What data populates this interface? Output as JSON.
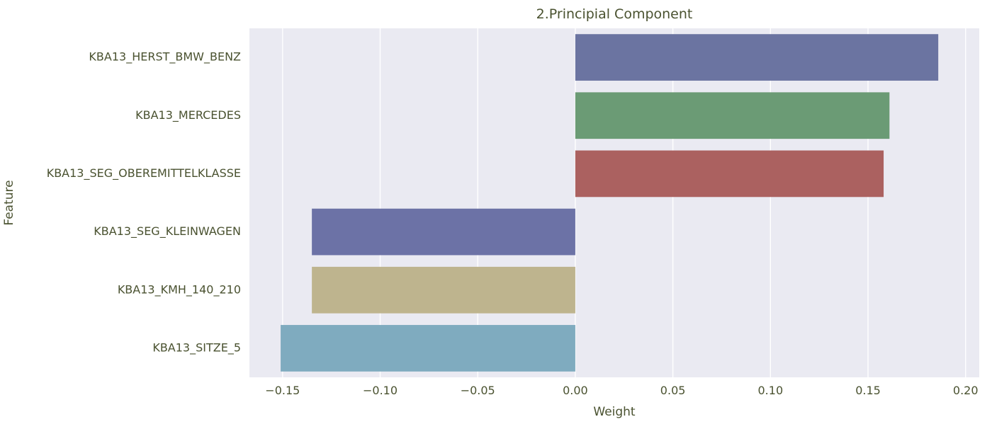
{
  "chart_data": {
    "type": "bar",
    "orientation": "horizontal",
    "title": "2.Principial Component",
    "xlabel": "Weight",
    "ylabel": "Feature",
    "categories": [
      "KBA13_HERST_BMW_BENZ",
      "KBA13_MERCEDES",
      "KBA13_SEG_OBEREMITTELKLASSE",
      "KBA13_SEG_KLEINWAGEN",
      "KBA13_KMH_140_210",
      "KBA13_SITZE_5"
    ],
    "values": [
      0.186,
      0.161,
      0.158,
      -0.135,
      -0.135,
      -0.151
    ],
    "colors": [
      "#6b74a1",
      "#6b9b75",
      "#ab6160",
      "#6c72a6",
      "#beb48e",
      "#7fabbf"
    ],
    "xlim": [
      -0.167,
      0.207
    ],
    "xticks": [
      -0.15,
      -0.1,
      -0.05,
      0.0,
      0.05,
      0.1,
      0.15,
      0.2
    ],
    "xtick_labels": [
      "−0.15",
      "−0.10",
      "−0.05",
      "0.00",
      "0.05",
      "0.10",
      "0.15",
      "0.20"
    ],
    "grid": true,
    "background_color": "#eaeaf2",
    "grid_color": "#ffffff",
    "text_color": "#4a5230"
  }
}
